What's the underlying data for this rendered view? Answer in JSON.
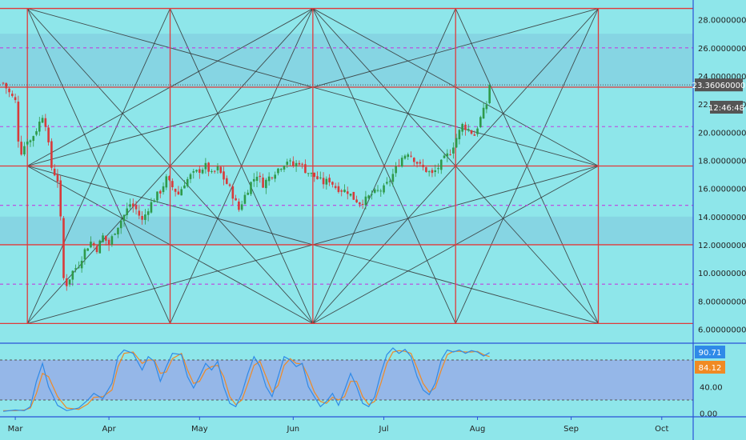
{
  "colors": {
    "background": "#8ee6ea",
    "band": "#7fc6dc",
    "grid_red": "#e03a3a",
    "level_magenta": "#c040e0",
    "fan_lines": "#333333",
    "candle_up": "#2e9a4a",
    "candle_down": "#d83a3a",
    "stoch_k": "#2f8ae8",
    "stoch_d": "#f08a24",
    "stoch_band": "#96aee8",
    "axis_line": "#2a52d8",
    "price_tag_bg": "#555555",
    "stoch_k_tag": "#2f8ae8",
    "stoch_d_tag": "#f08a24"
  },
  "price_tag": {
    "price": "23.36060000",
    "countdown": "12:46:48"
  },
  "stoch_tags": {
    "k": "90.71",
    "d": "84.12"
  },
  "chart_data": [
    {
      "type": "candlestick",
      "title": "",
      "x_tick_labels": [
        "Mar",
        "Apr",
        "May",
        "Jun",
        "Jul",
        "Aug",
        "Sep",
        "Oct"
      ],
      "y_tick_labels": [
        "6.00000000",
        "8.00000000",
        "10.00000000",
        "12.00000000",
        "14.00000000",
        "16.00000000",
        "18.00000000",
        "20.00000000",
        "22.00000000",
        "24.00000000",
        "26.00000000",
        "28.00000000"
      ],
      "ylim": [
        5.0,
        29.4
      ],
      "last_price": 23.3606,
      "gann_box": {
        "price_levels_solid": [
          6.4,
          12.0,
          17.6,
          23.2,
          28.8
        ],
        "price_levels_dashed": [
          9.2,
          14.8,
          20.4,
          26.0
        ],
        "time_divisions": 4,
        "start": "2021-03-05",
        "end": "2021-09-10"
      },
      "close_path": [
        [
          "2021-02-25",
          23.5
        ],
        [
          "2021-02-27",
          22.8
        ],
        [
          "2021-03-01",
          22.2
        ],
        [
          "2021-03-02",
          19.5
        ],
        [
          "2021-03-03",
          18.6
        ],
        [
          "2021-03-05",
          19.5
        ],
        [
          "2021-03-06",
          19.4
        ],
        [
          "2021-03-08",
          20.2
        ],
        [
          "2021-03-10",
          21.2
        ],
        [
          "2021-03-11",
          20.6
        ],
        [
          "2021-03-13",
          17.5
        ],
        [
          "2021-03-15",
          16.6
        ],
        [
          "2021-03-16",
          13.8
        ],
        [
          "2021-03-17",
          9.6
        ],
        [
          "2021-03-18",
          9.2
        ],
        [
          "2021-03-20",
          10.1
        ],
        [
          "2021-03-22",
          10.6
        ],
        [
          "2021-03-24",
          11.6
        ],
        [
          "2021-03-26",
          12.2
        ],
        [
          "2021-03-28",
          11.7
        ],
        [
          "2021-03-30",
          12.6
        ],
        [
          "2021-04-01",
          12.0
        ],
        [
          "2021-04-03",
          13.0
        ],
        [
          "2021-04-06",
          14.1
        ],
        [
          "2021-04-08",
          14.9
        ],
        [
          "2021-04-10",
          14.5
        ],
        [
          "2021-04-12",
          13.7
        ],
        [
          "2021-04-14",
          14.6
        ],
        [
          "2021-04-16",
          15.3
        ],
        [
          "2021-04-18",
          15.8
        ],
        [
          "2021-04-20",
          16.7
        ],
        [
          "2021-04-22",
          16.1
        ],
        [
          "2021-04-24",
          15.6
        ],
        [
          "2021-04-26",
          16.4
        ],
        [
          "2021-04-28",
          16.9
        ],
        [
          "2021-05-01",
          17.3
        ],
        [
          "2021-05-03",
          17.6
        ],
        [
          "2021-05-05",
          17.0
        ],
        [
          "2021-05-07",
          17.4
        ],
        [
          "2021-05-09",
          16.7
        ],
        [
          "2021-05-11",
          16.0
        ],
        [
          "2021-05-13",
          15.0
        ],
        [
          "2021-05-14",
          14.5
        ],
        [
          "2021-05-16",
          15.5
        ],
        [
          "2021-05-18",
          16.4
        ],
        [
          "2021-05-20",
          17.0
        ],
        [
          "2021-05-22",
          16.3
        ],
        [
          "2021-05-24",
          16.8
        ],
        [
          "2021-05-26",
          17.2
        ],
        [
          "2021-05-28",
          17.6
        ],
        [
          "2021-05-30",
          18.0
        ],
        [
          "2021-06-01",
          17.6
        ],
        [
          "2021-06-03",
          17.9
        ],
        [
          "2021-06-05",
          17.3
        ],
        [
          "2021-06-07",
          17.0
        ],
        [
          "2021-06-09",
          16.7
        ],
        [
          "2021-06-11",
          16.4
        ],
        [
          "2021-06-13",
          16.6
        ],
        [
          "2021-06-15",
          16.1
        ],
        [
          "2021-06-17",
          15.9
        ],
        [
          "2021-06-19",
          15.8
        ],
        [
          "2021-06-21",
          15.3
        ],
        [
          "2021-06-23",
          15.0
        ],
        [
          "2021-06-25",
          15.2
        ],
        [
          "2021-06-27",
          15.6
        ],
        [
          "2021-06-29",
          15.8
        ],
        [
          "2021-07-01",
          16.0
        ],
        [
          "2021-07-03",
          16.6
        ],
        [
          "2021-07-05",
          17.4
        ],
        [
          "2021-07-07",
          18.2
        ],
        [
          "2021-07-09",
          18.6
        ],
        [
          "2021-07-11",
          18.1
        ],
        [
          "2021-07-13",
          17.6
        ],
        [
          "2021-07-15",
          17.3
        ],
        [
          "2021-07-17",
          17.0
        ],
        [
          "2021-07-19",
          17.5
        ],
        [
          "2021-07-21",
          18.1
        ],
        [
          "2021-07-23",
          18.6
        ],
        [
          "2021-07-25",
          19.6
        ],
        [
          "2021-07-27",
          20.5
        ],
        [
          "2021-07-29",
          20.2
        ],
        [
          "2021-07-31",
          19.8
        ],
        [
          "2021-08-02",
          21.0
        ],
        [
          "2021-08-04",
          22.0
        ],
        [
          "2021-08-05",
          23.4
        ]
      ],
      "stochastic": {
        "y_tick_labels": [
          "0.00",
          "40.00"
        ],
        "ylim": [
          -4,
          104
        ],
        "band": [
          20,
          80
        ],
        "k_label": "90.71",
        "d_label": "84.12",
        "k_path": [
          [
            "2021-02-25",
            3
          ],
          [
            "2021-03-01",
            5
          ],
          [
            "2021-03-04",
            4
          ],
          [
            "2021-03-06",
            10
          ],
          [
            "2021-03-08",
            48
          ],
          [
            "2021-03-10",
            75
          ],
          [
            "2021-03-12",
            40
          ],
          [
            "2021-03-15",
            12
          ],
          [
            "2021-03-18",
            4
          ],
          [
            "2021-03-22",
            8
          ],
          [
            "2021-03-25",
            20
          ],
          [
            "2021-03-27",
            30
          ],
          [
            "2021-03-30",
            22
          ],
          [
            "2021-04-02",
            45
          ],
          [
            "2021-04-04",
            85
          ],
          [
            "2021-04-06",
            95
          ],
          [
            "2021-04-09",
            90
          ],
          [
            "2021-04-12",
            65
          ],
          [
            "2021-04-14",
            85
          ],
          [
            "2021-04-16",
            78
          ],
          [
            "2021-04-18",
            48
          ],
          [
            "2021-04-20",
            70
          ],
          [
            "2021-04-22",
            90
          ],
          [
            "2021-04-25",
            88
          ],
          [
            "2021-04-27",
            55
          ],
          [
            "2021-04-29",
            38
          ],
          [
            "2021-05-01",
            55
          ],
          [
            "2021-05-03",
            75
          ],
          [
            "2021-05-05",
            65
          ],
          [
            "2021-05-07",
            78
          ],
          [
            "2021-05-09",
            40
          ],
          [
            "2021-05-11",
            15
          ],
          [
            "2021-05-13",
            10
          ],
          [
            "2021-05-15",
            30
          ],
          [
            "2021-05-17",
            60
          ],
          [
            "2021-05-19",
            85
          ],
          [
            "2021-05-21",
            70
          ],
          [
            "2021-05-23",
            40
          ],
          [
            "2021-05-25",
            25
          ],
          [
            "2021-05-27",
            55
          ],
          [
            "2021-05-29",
            85
          ],
          [
            "2021-05-31",
            80
          ],
          [
            "2021-06-02",
            70
          ],
          [
            "2021-06-04",
            75
          ],
          [
            "2021-06-06",
            40
          ],
          [
            "2021-06-08",
            25
          ],
          [
            "2021-06-10",
            10
          ],
          [
            "2021-06-12",
            18
          ],
          [
            "2021-06-14",
            30
          ],
          [
            "2021-06-16",
            12
          ],
          [
            "2021-06-18",
            35
          ],
          [
            "2021-06-20",
            60
          ],
          [
            "2021-06-22",
            40
          ],
          [
            "2021-06-24",
            15
          ],
          [
            "2021-06-26",
            10
          ],
          [
            "2021-06-28",
            25
          ],
          [
            "2021-06-30",
            60
          ],
          [
            "2021-07-02",
            88
          ],
          [
            "2021-07-04",
            98
          ],
          [
            "2021-07-06",
            90
          ],
          [
            "2021-07-08",
            96
          ],
          [
            "2021-07-10",
            85
          ],
          [
            "2021-07-12",
            55
          ],
          [
            "2021-07-14",
            35
          ],
          [
            "2021-07-16",
            28
          ],
          [
            "2021-07-18",
            45
          ],
          [
            "2021-07-20",
            80
          ],
          [
            "2021-07-22",
            95
          ],
          [
            "2021-07-24",
            92
          ],
          [
            "2021-07-26",
            95
          ],
          [
            "2021-07-28",
            90
          ],
          [
            "2021-07-30",
            94
          ],
          [
            "2021-08-01",
            92
          ],
          [
            "2021-08-03",
            86
          ],
          [
            "2021-08-05",
            91
          ]
        ],
        "d_path": [
          [
            "2021-02-25",
            4
          ],
          [
            "2021-03-01",
            4
          ],
          [
            "2021-03-04",
            5
          ],
          [
            "2021-03-06",
            8
          ],
          [
            "2021-03-08",
            30
          ],
          [
            "2021-03-10",
            60
          ],
          [
            "2021-03-12",
            55
          ],
          [
            "2021-03-15",
            25
          ],
          [
            "2021-03-18",
            8
          ],
          [
            "2021-03-22",
            6
          ],
          [
            "2021-03-25",
            14
          ],
          [
            "2021-03-27",
            24
          ],
          [
            "2021-03-30",
            25
          ],
          [
            "2021-04-02",
            35
          ],
          [
            "2021-04-04",
            70
          ],
          [
            "2021-04-06",
            90
          ],
          [
            "2021-04-09",
            92
          ],
          [
            "2021-04-12",
            75
          ],
          [
            "2021-04-14",
            80
          ],
          [
            "2021-04-16",
            80
          ],
          [
            "2021-04-18",
            60
          ],
          [
            "2021-04-20",
            62
          ],
          [
            "2021-04-22",
            82
          ],
          [
            "2021-04-25",
            90
          ],
          [
            "2021-04-27",
            65
          ],
          [
            "2021-04-29",
            45
          ],
          [
            "2021-05-01",
            48
          ],
          [
            "2021-05-03",
            65
          ],
          [
            "2021-05-05",
            70
          ],
          [
            "2021-05-07",
            72
          ],
          [
            "2021-05-09",
            55
          ],
          [
            "2021-05-11",
            25
          ],
          [
            "2021-05-13",
            13
          ],
          [
            "2021-05-15",
            20
          ],
          [
            "2021-05-17",
            45
          ],
          [
            "2021-05-19",
            72
          ],
          [
            "2021-05-21",
            78
          ],
          [
            "2021-05-23",
            55
          ],
          [
            "2021-05-25",
            32
          ],
          [
            "2021-05-27",
            42
          ],
          [
            "2021-05-29",
            72
          ],
          [
            "2021-05-31",
            82
          ],
          [
            "2021-06-02",
            75
          ],
          [
            "2021-06-04",
            74
          ],
          [
            "2021-06-06",
            55
          ],
          [
            "2021-06-08",
            32
          ],
          [
            "2021-06-10",
            18
          ],
          [
            "2021-06-12",
            15
          ],
          [
            "2021-06-14",
            24
          ],
          [
            "2021-06-16",
            20
          ],
          [
            "2021-06-18",
            25
          ],
          [
            "2021-06-20",
            48
          ],
          [
            "2021-06-22",
            48
          ],
          [
            "2021-06-24",
            25
          ],
          [
            "2021-06-26",
            13
          ],
          [
            "2021-06-28",
            18
          ],
          [
            "2021-06-30",
            45
          ],
          [
            "2021-07-02",
            75
          ],
          [
            "2021-07-04",
            92
          ],
          [
            "2021-07-06",
            94
          ],
          [
            "2021-07-08",
            93
          ],
          [
            "2021-07-10",
            90
          ],
          [
            "2021-07-12",
            68
          ],
          [
            "2021-07-14",
            45
          ],
          [
            "2021-07-16",
            32
          ],
          [
            "2021-07-18",
            38
          ],
          [
            "2021-07-20",
            65
          ],
          [
            "2021-07-22",
            88
          ],
          [
            "2021-07-24",
            93
          ],
          [
            "2021-07-26",
            93
          ],
          [
            "2021-07-28",
            92
          ],
          [
            "2021-07-30",
            92
          ],
          [
            "2021-08-01",
            93
          ],
          [
            "2021-08-03",
            88
          ],
          [
            "2021-08-05",
            85
          ]
        ]
      }
    }
  ]
}
